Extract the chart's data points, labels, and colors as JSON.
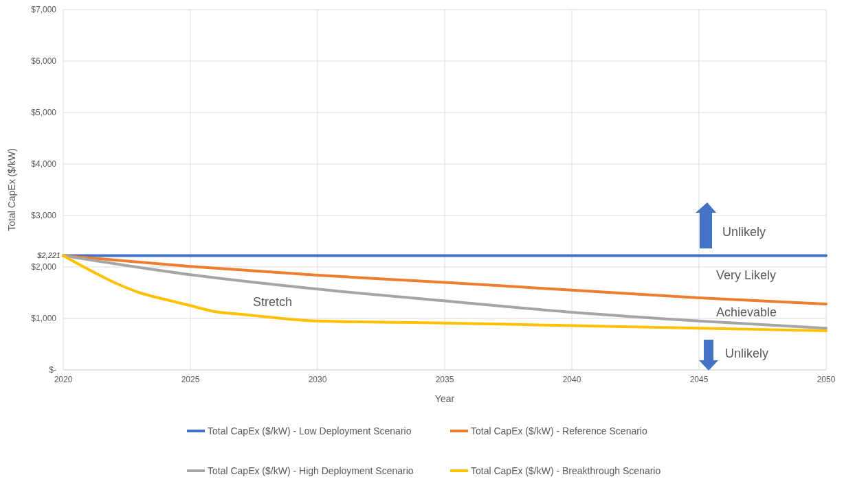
{
  "chart_data": {
    "type": "line",
    "xlabel": "Year",
    "ylabel": "Total CapEx ($/kW)",
    "x": [
      2020,
      2021,
      2022,
      2023,
      2024,
      2025,
      2026,
      2027,
      2028,
      2029,
      2030,
      2035,
      2040,
      2045,
      2050
    ],
    "series": [
      {
        "name": "Total CapEx ($/kW) - Low Deployment Scenario",
        "color": "#4472c4",
        "x": [
          2020,
          2050
        ],
        "values": [
          2221,
          2221
        ]
      },
      {
        "name": "Total CapEx ($/kW) - Reference Scenario",
        "color": "#ed7d31",
        "x": [
          2020,
          2025,
          2030,
          2035,
          2040,
          2045,
          2050
        ],
        "values": [
          2221,
          2010,
          1840,
          1700,
          1550,
          1400,
          1280
        ]
      },
      {
        "name": "Total CapEx ($/kW) - High Deployment Scenario",
        "color": "#a5a5a5",
        "x": [
          2020,
          2025,
          2030,
          2035,
          2040,
          2045,
          2050
        ],
        "values": [
          2221,
          1850,
          1570,
          1340,
          1120,
          950,
          810
        ]
      },
      {
        "name": "Total CapEx ($/kW) - Breakthrough Scenario",
        "color": "#ffc000",
        "values": [
          2221,
          1950,
          1700,
          1500,
          1370,
          1250,
          1130,
          1080,
          1030,
          980,
          950,
          910,
          860,
          810,
          760
        ]
      }
    ],
    "xlim": [
      2020,
      2050
    ],
    "xticks": [
      2020,
      2025,
      2030,
      2035,
      2040,
      2045,
      2050
    ],
    "ylim": [
      0,
      7000
    ],
    "yticks": [
      {
        "value": 0,
        "label": "$-"
      },
      {
        "value": 1000,
        "label": "$1,000"
      },
      {
        "value": 2000,
        "label": "$2,000"
      },
      {
        "value": 3000,
        "label": "$3,000"
      },
      {
        "value": 4000,
        "label": "$4,000"
      },
      {
        "value": 5000,
        "label": "$5,000"
      },
      {
        "value": 6000,
        "label": "$6,000"
      },
      {
        "value": 7000,
        "label": "$7,000"
      }
    ],
    "annotations": [
      {
        "text": "$2,221",
        "x": 2020,
        "y": 2221
      },
      "Unlikely",
      "Very Likely",
      "Achievable",
      "Unlikely",
      "Stretch"
    ],
    "grid": true,
    "legend": "bottom",
    "marker": "none",
    "line_style": "solid"
  }
}
